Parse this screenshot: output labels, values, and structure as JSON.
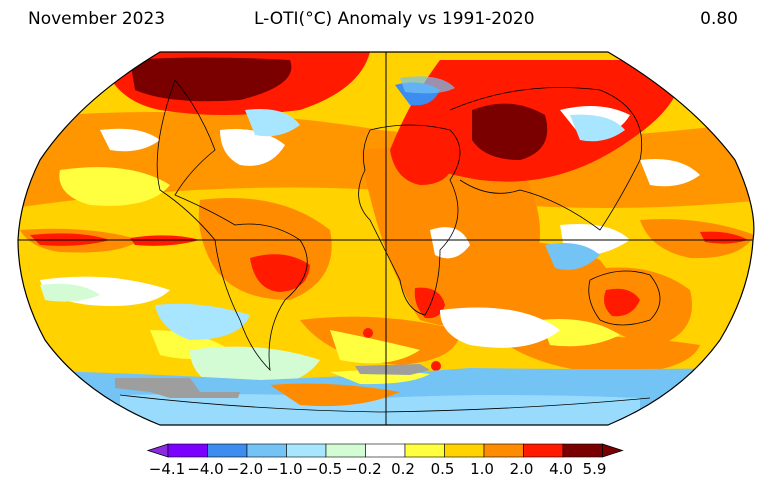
{
  "header": {
    "left": "November 2023",
    "center": "L-OTI(°C) Anomaly vs 1991-2020",
    "right": "0.80"
  },
  "colorbar": {
    "ticks": [
      "−4.1",
      "−4.0",
      "−2.0",
      "−1.0",
      "−0.5",
      "−0.2",
      "0.2",
      "0.5",
      "1.0",
      "2.0",
      "4.0",
      "5.9"
    ],
    "under_color": "#8a2be2",
    "over_color": "#7a0000",
    "colors": [
      "#7b00ff",
      "#3d8cf0",
      "#74c3f5",
      "#a8e6ff",
      "#d4fcd4",
      "#ffffff",
      "#ffff40",
      "#ffd200",
      "#ff8c00",
      "#ff1a00",
      "#7a0000"
    ]
  },
  "map": {
    "projection": "Robinson",
    "missing_color": "#9e9e9e"
  }
}
